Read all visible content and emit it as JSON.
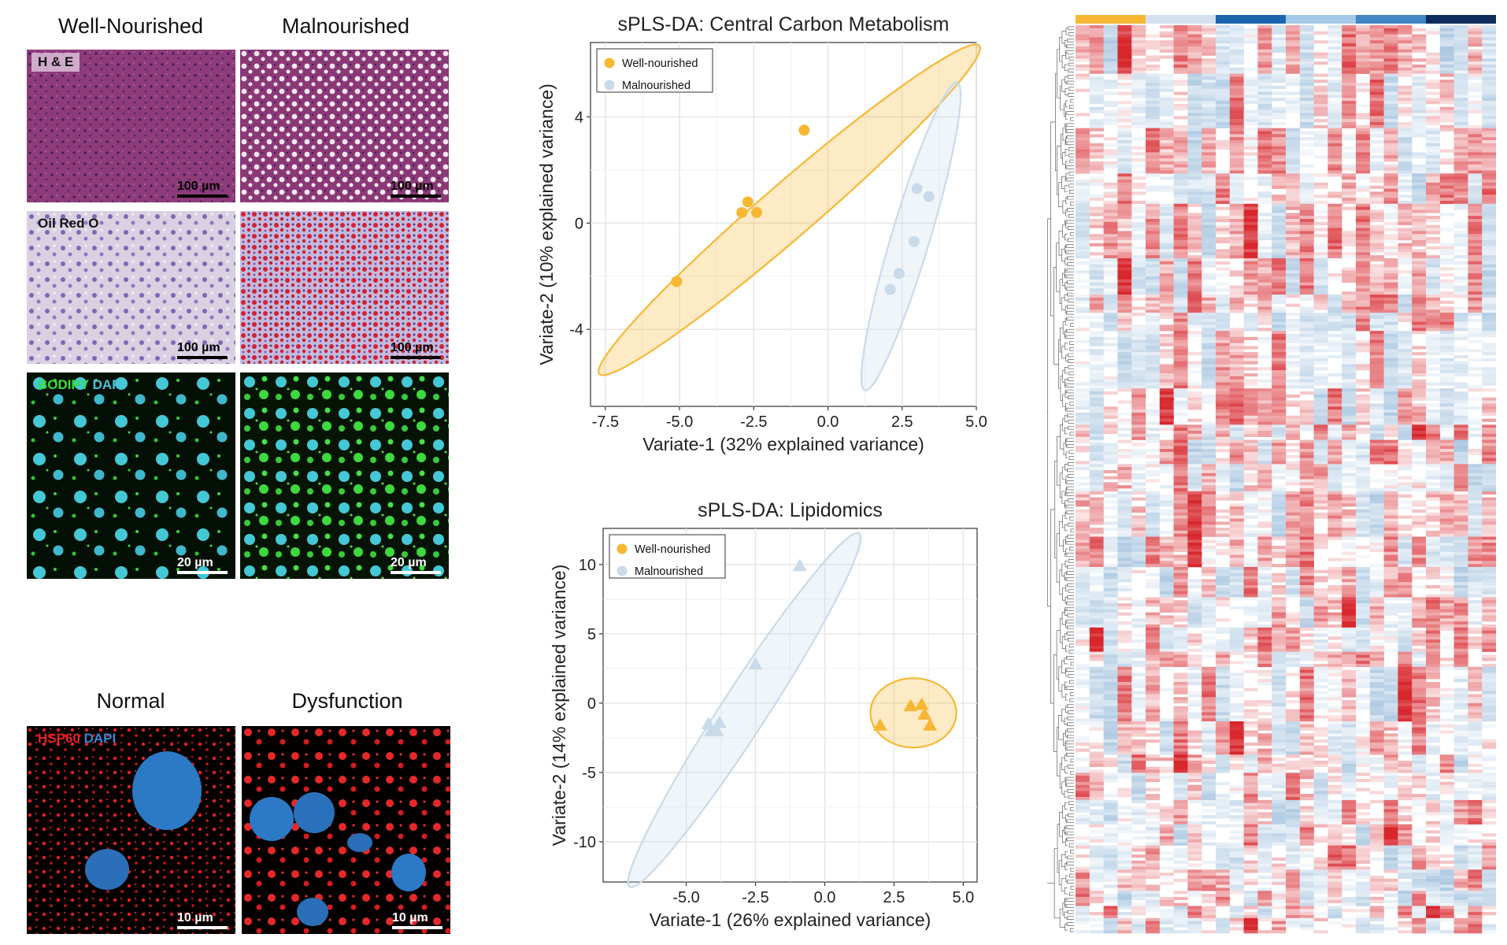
{
  "histology": {
    "col_titles": [
      "Well-Nourished",
      "Malnourished"
    ],
    "rows": [
      {
        "stain": "H & E",
        "scale_left": "100 µm",
        "scale_right": "100 µm"
      },
      {
        "stain": "Oil Red O",
        "scale_left": "100 µm",
        "scale_right": "100 µm"
      },
      {
        "stain_a": "BODIPY",
        "stain_b": "DAPI",
        "scale_left": "20 µm",
        "scale_right": "20 µm"
      }
    ]
  },
  "mito": {
    "col_titles": [
      "Normal",
      "Dysfunction"
    ],
    "stain_a": "HSP60",
    "stain_b": "DAPI",
    "scale_left": "10 µm",
    "scale_right": "10 µm"
  },
  "colors": {
    "well": "#F7B733",
    "mal": "#C9DAEA",
    "heat_high": "#D7262C",
    "heat_low": "#9EBFDC"
  },
  "chart_data": [
    {
      "type": "scatter",
      "title": "sPLS-DA: Central Carbon Metabolism",
      "xlabel": "Variate-1 (32% explained variance)",
      "ylabel": "Variate-2 (10% explained variance)",
      "xlim": [
        -8.0,
        5.0
      ],
      "ylim": [
        -6.9,
        6.8
      ],
      "xticks": [
        -7.5,
        -5.0,
        -2.5,
        0.0,
        2.5,
        5.0
      ],
      "xtick_labels": [
        "-7.5",
        "-5.0",
        "-2.5",
        "0.0",
        "2.5",
        "5.0"
      ],
      "yticks": [
        -4,
        0,
        4
      ],
      "ytick_labels": [
        "-4",
        "0",
        "4"
      ],
      "grid": true,
      "legend": "top-left",
      "marker": "circle",
      "series": [
        {
          "name": "Well-nourished",
          "color": "#F7B733",
          "x": [
            -5.1,
            -2.9,
            -2.7,
            -2.4,
            -0.8
          ],
          "y": [
            -2.2,
            0.4,
            0.8,
            0.4,
            3.5
          ],
          "ellipse": {
            "cx": -1.3,
            "cy": 0.5,
            "rx": 8.9,
            "ry": 0.95,
            "angle_deg": 44
          }
        },
        {
          "name": "Malnourished",
          "color": "#C9DAEA",
          "x": [
            2.1,
            2.4,
            2.9,
            3.0,
            3.4
          ],
          "y": [
            -2.5,
            -1.9,
            -0.7,
            1.3,
            1.0
          ],
          "ellipse": {
            "cx": 2.8,
            "cy": -0.5,
            "rx": 6.0,
            "ry": 0.65,
            "angle_deg": 75
          }
        }
      ]
    },
    {
      "type": "scatter",
      "title": "sPLS-DA: Lipidomics",
      "xlabel": "Variate-1 (26% explained variance)",
      "ylabel": "Variate-2 (14% explained variance)",
      "xlim": [
        -8.0,
        5.5
      ],
      "ylim": [
        -12.9,
        12.6
      ],
      "xticks": [
        -5.0,
        -2.5,
        0.0,
        2.5,
        5.0
      ],
      "xtick_labels": [
        "-5.0",
        "-2.5",
        "0.0",
        "2.5",
        "5.0"
      ],
      "yticks": [
        -10,
        -5,
        0,
        5,
        10
      ],
      "ytick_labels": [
        "-10",
        "-5",
        "0",
        "5",
        "10"
      ],
      "grid": true,
      "legend": "top-left",
      "marker": "triangle",
      "series": [
        {
          "name": "Well-nourished",
          "color": "#F7B733",
          "x": [
            2.0,
            3.1,
            3.5,
            3.6,
            3.8
          ],
          "y": [
            -1.6,
            -0.2,
            -0.1,
            -0.8,
            -1.6
          ],
          "ellipse": {
            "cx": 3.2,
            "cy": -0.7,
            "rx": 1.55,
            "ry": 2.5,
            "angle_deg": 0
          }
        },
        {
          "name": "Malnourished",
          "color": "#C9DAEA",
          "x": [
            -4.2,
            -4.1,
            -3.8,
            -3.9,
            -2.5,
            -0.9
          ],
          "y": [
            -1.5,
            -2.0,
            -1.4,
            -2.0,
            2.8,
            9.9
          ],
          "ellipse": {
            "cx": -2.9,
            "cy": -0.5,
            "rx": 13.4,
            "ry": 0.85,
            "angle_deg": 72
          }
        }
      ]
    },
    {
      "type": "heatmap",
      "rows": 300,
      "columns": 30,
      "groups": [
        {
          "color": "#F7B733"
        },
        {
          "color": "#D3E1EE"
        },
        {
          "color": "#1C64AE"
        },
        {
          "color": "#A2C9E6"
        },
        {
          "color": "#4386C4"
        },
        {
          "color": "#0E2D5C"
        }
      ],
      "color_low": "#9EBFDC",
      "color_mid": "#FFFFFF",
      "color_high": "#D7262C"
    }
  ]
}
